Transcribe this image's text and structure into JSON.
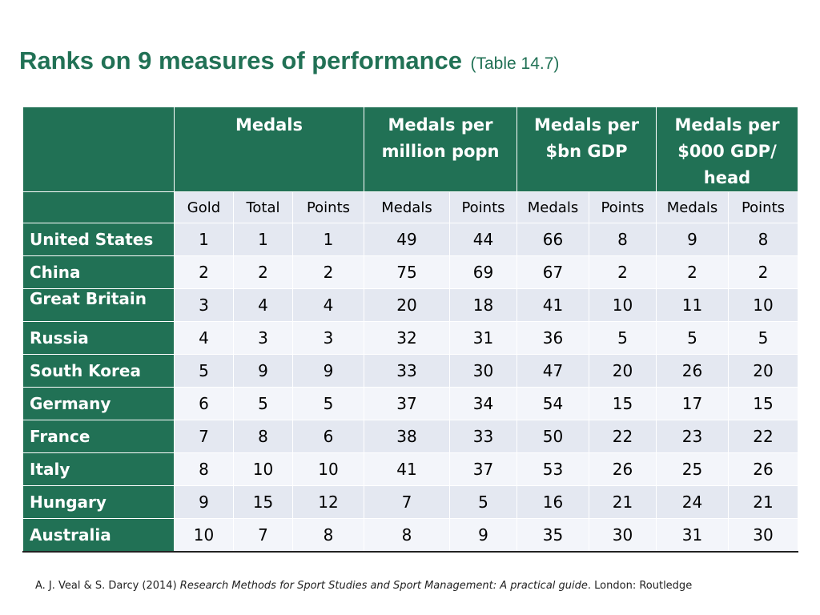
{
  "title": {
    "main": "Ranks on 9 measures of performance",
    "sub": "(Table 14.7)"
  },
  "table": {
    "groups": [
      "Medals",
      "Medals per million popn",
      "Medals per $bn GDP",
      "Medals per $000 GDP/ head"
    ],
    "subheaders": [
      "Gold",
      "Total",
      "Points",
      "Medals",
      "Points",
      "Medals",
      "Points",
      "Medals",
      "Points"
    ],
    "rows": [
      {
        "country": "United States",
        "values": [
          "1",
          "1",
          "1",
          "49",
          "44",
          "66",
          "8",
          "9",
          "8"
        ]
      },
      {
        "country": "China",
        "values": [
          "2",
          "2",
          "2",
          "75",
          "69",
          "67",
          "2",
          "2",
          "2"
        ]
      },
      {
        "country": "Great Britain",
        "values": [
          "3",
          "4",
          "4",
          "20",
          "18",
          "41",
          "10",
          "11",
          "10"
        ]
      },
      {
        "country": "Russia",
        "values": [
          "4",
          "3",
          "3",
          "32",
          "31",
          "36",
          "5",
          "5",
          "5"
        ]
      },
      {
        "country": "South Korea",
        "values": [
          "5",
          "9",
          "9",
          "33",
          "30",
          "47",
          "20",
          "26",
          "20"
        ]
      },
      {
        "country": "Germany",
        "values": [
          "6",
          "5",
          "5",
          "37",
          "34",
          "54",
          "15",
          "17",
          "15"
        ]
      },
      {
        "country": "France",
        "values": [
          "7",
          "8",
          "6",
          "38",
          "33",
          "50",
          "22",
          "23",
          "22"
        ]
      },
      {
        "country": "Italy",
        "values": [
          "8",
          "10",
          "10",
          "41",
          "37",
          "53",
          "26",
          "25",
          "26"
        ]
      },
      {
        "country": "Hungary",
        "values": [
          "9",
          "15",
          "12",
          "7",
          "5",
          "16",
          "21",
          "24",
          "21"
        ]
      },
      {
        "country": "Australia",
        "values": [
          "10",
          "7",
          "8",
          "8",
          "9",
          "35",
          "30",
          "31",
          "30"
        ]
      }
    ]
  },
  "citation": {
    "authors": "A. J. Veal & S. Darcy (2014) ",
    "book": "Research Methods for Sport Studies and Sport Management: A practical guide",
    "publisher": ". London: Routledge"
  },
  "colors": {
    "header_green": "#217155",
    "row_tint_dark": "#e4e8f1",
    "row_tint_light": "#f3f5fa",
    "title_green": "#217155"
  }
}
